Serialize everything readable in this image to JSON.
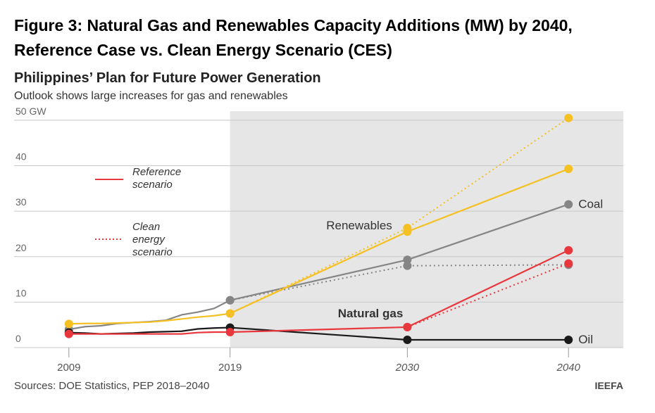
{
  "figure_title": [
    "Figure 3: Natural Gas and Renewables Capacity Additions (MW) by 2040,",
    "Reference Case vs. Clean Energy Scenario (CES)"
  ],
  "chart_data": {
    "type": "line",
    "title": "Philippines’ Plan for Future Power Generation",
    "subtitle": "Outlook shows large increases for gas and renewables",
    "xlim": [
      2005.6,
      2043.4
    ],
    "xticks": [
      2009,
      2019,
      2030,
      2040
    ],
    "ylim": [
      0,
      52
    ],
    "yticks": [
      0,
      10,
      20,
      30,
      40,
      {
        "value": 50,
        "label": "50 GW"
      }
    ],
    "grid": true,
    "legend": [
      {
        "label": [
          "Reference",
          "scenario"
        ],
        "style": "solid",
        "color": "#e8383d"
      },
      {
        "label": [
          "Clean",
          "energy",
          "scenario"
        ],
        "style": "dotted",
        "color": "#e8383d"
      }
    ],
    "series": [
      {
        "name": "Coal",
        "color": "#858585",
        "style": "solid",
        "x": [
          2009,
          2010,
          2011,
          2012,
          2013,
          2014,
          2015,
          2016,
          2017,
          2018,
          2019,
          2030,
          2040
        ],
        "values": [
          4.0,
          4.6,
          4.8,
          5.3,
          5.5,
          5.7,
          6.0,
          7.2,
          7.8,
          8.6,
          10.4,
          19.3,
          31.5
        ]
      },
      {
        "color": "#858585",
        "style": "dotted",
        "x": [
          2019,
          2030,
          2040
        ],
        "values": [
          10.4,
          18.0,
          18.2
        ]
      },
      {
        "name": "Renewables",
        "color": "#f5c022",
        "style": "solid",
        "x": [
          2009,
          2010,
          2011,
          2012,
          2013,
          2014,
          2015,
          2016,
          2017,
          2018,
          2019,
          2030,
          2040
        ],
        "values": [
          5.2,
          5.3,
          5.3,
          5.4,
          5.5,
          5.6,
          5.9,
          6.3,
          6.7,
          7.0,
          7.5,
          25.5,
          39.3
        ]
      },
      {
        "color": "#f5c022",
        "style": "dotted",
        "x": [
          2019,
          2030,
          2040
        ],
        "values": [
          7.5,
          26.3,
          50.5
        ]
      },
      {
        "name": "Oil",
        "color": "#1a1a1a",
        "style": "solid",
        "x": [
          2009,
          2010,
          2011,
          2012,
          2013,
          2014,
          2015,
          2016,
          2017,
          2018,
          2019,
          2030,
          2040
        ],
        "values": [
          3.3,
          3.2,
          3.0,
          3.1,
          3.2,
          3.4,
          3.5,
          3.6,
          4.1,
          4.3,
          4.4,
          1.7,
          1.7
        ]
      },
      {
        "name": "Natural gas",
        "color": "#e8383d",
        "style": "solid",
        "x": [
          2009,
          2010,
          2011,
          2012,
          2013,
          2014,
          2015,
          2016,
          2017,
          2018,
          2019,
          2030,
          2040
        ],
        "values": [
          3.0,
          3.0,
          3.0,
          3.0,
          3.0,
          3.0,
          3.0,
          3.0,
          3.3,
          3.4,
          3.4,
          4.5,
          21.4
        ]
      },
      {
        "color": "#e8383d",
        "style": "dotted",
        "x": [
          2030,
          2040
        ],
        "values": [
          4.5,
          18.5
        ]
      }
    ],
    "source": "Sources: DOE Statistics, PEP 2018–2040",
    "credit": "IEEFA"
  }
}
